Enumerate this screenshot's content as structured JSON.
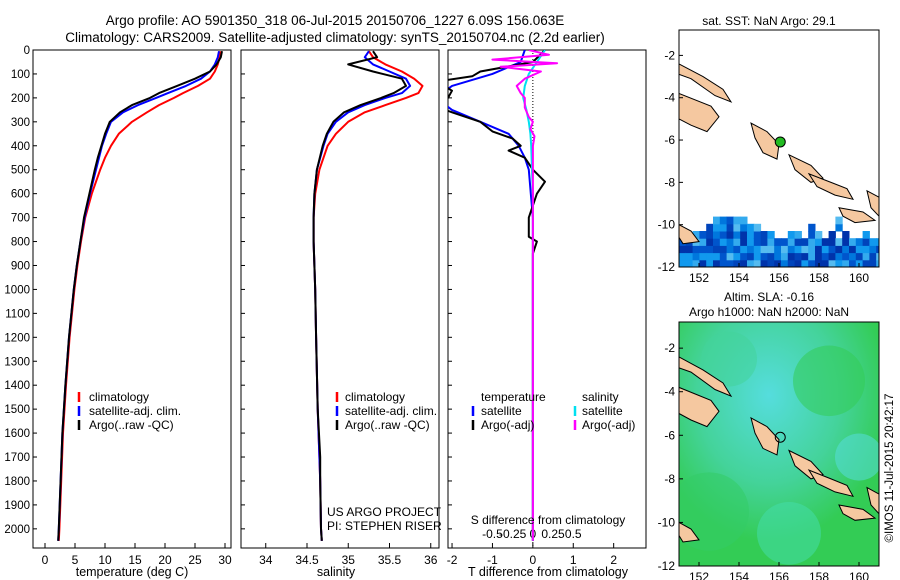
{
  "header": {
    "line1": "Argo profile: AO 5901350_318 06-Jul-2015 20150706_1227 6.09S 156.063E",
    "line2": "Climatology: CARS2009. Satellite-adjusted climatology: synTS_20150704.nc (2.2d earlier)"
  },
  "colors": {
    "climatology": "#ff0000",
    "satellite": "#0000ff",
    "argo": "#000000",
    "sal_satellite": "#00e0f0",
    "sal_argo": "#ff00ff",
    "land": "#f5c8a0",
    "sla_green": "#33cc55",
    "sla_cyan": "#55dddd"
  },
  "chart_data": [
    {
      "type": "line",
      "id": "temperature",
      "xlabel": "temperature (deg C)",
      "ylabel": "",
      "xlim": [
        -2,
        31
      ],
      "ylim": [
        2080,
        0
      ],
      "xticks": [
        0,
        5,
        10,
        15,
        20,
        25,
        30
      ],
      "yticks": [
        0,
        100,
        200,
        300,
        400,
        500,
        600,
        700,
        800,
        900,
        1000,
        1100,
        1200,
        1300,
        1400,
        1500,
        1600,
        1700,
        1800,
        1900,
        2000
      ],
      "legend": [
        "climatology",
        "satellite-adj. clim.",
        "Argo(..raw -QC)"
      ],
      "series": [
        {
          "name": "climatology",
          "depth": [
            5,
            30,
            60,
            90,
            120,
            150,
            180,
            200,
            230,
            260,
            300,
            350,
            400,
            450,
            500,
            600,
            700,
            800,
            900,
            1000,
            1200,
            1400,
            1600,
            1800,
            2000,
            2050
          ],
          "values": [
            29.2,
            29.1,
            28.8,
            28.3,
            27.5,
            25.5,
            23.0,
            21.5,
            19.0,
            17.0,
            14.5,
            12.3,
            11.0,
            10.0,
            9.2,
            7.8,
            6.7,
            6.0,
            5.4,
            4.9,
            4.1,
            3.5,
            3.0,
            2.7,
            2.4,
            2.3
          ]
        },
        {
          "name": "satellite-adj. clim.",
          "depth": [
            5,
            30,
            60,
            90,
            120,
            150,
            180,
            200,
            230,
            260,
            300,
            350,
            400,
            450,
            500,
            600,
            700,
            800,
            900,
            1000,
            1200,
            1400,
            1600,
            1800,
            2000,
            2050
          ],
          "values": [
            29.0,
            28.8,
            28.3,
            27.5,
            26.0,
            23.5,
            20.5,
            18.5,
            15.5,
            13.0,
            11.0,
            10.2,
            9.5,
            9.0,
            8.5,
            7.5,
            6.6,
            5.9,
            5.3,
            4.8,
            4.0,
            3.4,
            2.9,
            2.6,
            2.3,
            2.2
          ]
        },
        {
          "name": "Argo(..raw -QC)",
          "depth": [
            5,
            30,
            60,
            90,
            120,
            150,
            180,
            200,
            230,
            260,
            300,
            350,
            400,
            450,
            500,
            600,
            700,
            800,
            900,
            1000,
            1200,
            1400,
            1600,
            1800,
            2000,
            2050
          ],
          "values": [
            29.5,
            29.3,
            28.6,
            27.5,
            25.0,
            22.0,
            19.0,
            17.5,
            14.5,
            12.5,
            10.8,
            10.0,
            9.4,
            8.8,
            8.3,
            7.4,
            6.5,
            5.9,
            5.3,
            4.8,
            4.0,
            3.4,
            2.9,
            2.6,
            2.3,
            2.2
          ]
        }
      ]
    },
    {
      "type": "line",
      "id": "salinity",
      "xlabel": "salinity",
      "xlim": [
        33.7,
        36.1
      ],
      "ylim": [
        2080,
        0
      ],
      "xticks": [
        34,
        34.5,
        35,
        35.5,
        36
      ],
      "legend": [
        "climatology",
        "satellite-adj. clim.",
        "Argo(..raw -QC)"
      ],
      "series": [
        {
          "name": "climatology",
          "depth": [
            5,
            30,
            60,
            90,
            120,
            150,
            180,
            200,
            230,
            260,
            300,
            350,
            400,
            500,
            600,
            700,
            800,
            900,
            1000,
            1200,
            1500,
            1700,
            1800,
            2000,
            2050
          ],
          "values": [
            35.25,
            35.3,
            35.45,
            35.65,
            35.8,
            35.9,
            35.85,
            35.7,
            35.45,
            35.2,
            35.0,
            34.85,
            34.75,
            34.65,
            34.6,
            34.58,
            34.58,
            34.59,
            34.6,
            34.61,
            34.63,
            34.65,
            34.66,
            34.67,
            34.68
          ]
        },
        {
          "name": "satellite-adj. clim.",
          "depth": [
            5,
            30,
            60,
            90,
            120,
            150,
            180,
            200,
            230,
            260,
            300,
            350,
            400,
            500,
            600,
            700,
            800,
            900,
            1000,
            1200,
            1500,
            1700,
            1800,
            2000,
            2050
          ],
          "values": [
            35.25,
            35.2,
            35.3,
            35.5,
            35.7,
            35.75,
            35.65,
            35.45,
            35.2,
            35.0,
            34.85,
            34.75,
            34.7,
            34.62,
            34.59,
            34.58,
            34.58,
            34.59,
            34.6,
            34.61,
            34.63,
            34.65,
            34.66,
            34.67,
            34.68
          ]
        },
        {
          "name": "Argo(..raw -QC)",
          "depth": [
            5,
            30,
            60,
            90,
            120,
            150,
            180,
            200,
            230,
            260,
            300,
            350,
            400,
            500,
            600,
            700,
            800,
            900,
            1000,
            1200,
            1500,
            1700,
            1800,
            2000,
            2050
          ],
          "values": [
            35.3,
            35.35,
            35.0,
            35.3,
            35.65,
            35.7,
            35.55,
            35.4,
            35.15,
            34.95,
            34.82,
            34.74,
            34.69,
            34.62,
            34.59,
            34.58,
            34.58,
            34.59,
            34.6,
            34.61,
            34.63,
            34.66,
            34.66,
            34.67,
            34.68
          ]
        }
      ],
      "annotation": [
        "US ARGO PROJECT",
        "PI: STEPHEN RISER"
      ]
    },
    {
      "type": "line",
      "id": "difference",
      "xlabel": "T difference from climatology",
      "xlabel_top": "S difference from climatology",
      "xlim": [
        -2.1,
        2.8
      ],
      "ylim": [
        2080,
        0
      ],
      "xticks": [
        -2,
        -1,
        0,
        1,
        2
      ],
      "xticks_top": [
        -0.5,
        -0.25,
        0,
        0.25,
        0.5
      ],
      "legend_titles": [
        "temperature",
        "salinity"
      ],
      "legend": [
        "satellite",
        "Argo(-adj)",
        "satellite",
        "Argo(-adj)"
      ],
      "series": [
        {
          "name": "satellite",
          "group": "temperature",
          "depth": [
            0,
            50,
            100,
            150,
            200,
            250,
            300,
            350,
            400,
            450,
            500,
            600,
            700,
            800,
            1000,
            1200,
            1500,
            1800,
            2050
          ],
          "values": [
            -0.2,
            -0.3,
            -1.0,
            -2.0,
            -2.4,
            -2.0,
            -1.3,
            -0.6,
            -0.35,
            -0.2,
            -0.1,
            -0.05,
            0.0,
            0.0,
            0.0,
            0.0,
            0.0,
            0.0,
            0.0
          ]
        },
        {
          "name": "Argo(-adj)",
          "group": "temperature",
          "depth": [
            0,
            50,
            90,
            110,
            130,
            150,
            170,
            200,
            215,
            230,
            260,
            300,
            340,
            370,
            400,
            420,
            450,
            500,
            550,
            600,
            700,
            780,
            800,
            850,
            900,
            1000,
            1500,
            2050
          ],
          "values": [
            0.3,
            0.0,
            -1.3,
            -1.5,
            -2.3,
            -2.2,
            -2.0,
            -2.1,
            -2.2,
            -2.5,
            -2.0,
            -1.3,
            -1.0,
            -0.5,
            -0.3,
            -0.6,
            -0.2,
            0.0,
            0.3,
            0.1,
            -0.1,
            -0.1,
            0.1,
            0.0,
            0.0,
            0.0,
            0.0,
            0.0
          ]
        },
        {
          "name": "satellite",
          "group": "salinity",
          "depth": [
            0,
            50,
            100,
            150,
            200,
            250,
            300,
            350,
            400,
            500,
            600,
            800,
            1000,
            1500,
            2050
          ],
          "values": [
            0.15,
            0.05,
            -0.05,
            -0.1,
            -0.12,
            -0.08,
            -0.05,
            -0.03,
            -0.02,
            -0.01,
            0.0,
            0.0,
            0.0,
            0.0,
            0.0
          ]
        },
        {
          "name": "Argo(-adj)",
          "group": "salinity",
          "depth": [
            0,
            20,
            40,
            55,
            70,
            90,
            120,
            150,
            180,
            200,
            240,
            280,
            300,
            330,
            360,
            400,
            500,
            1000,
            2050
          ],
          "values": [
            -0.05,
            0.2,
            -0.5,
            0.3,
            -0.4,
            0.1,
            -0.1,
            -0.2,
            -0.15,
            -0.1,
            -0.1,
            -0.05,
            0.0,
            -0.03,
            0.02,
            0.0,
            0.0,
            0.0,
            0.0
          ]
        }
      ]
    },
    {
      "type": "heatmap",
      "id": "sst-map",
      "title": "sat. SST: NaN Argo: 29.1",
      "xlim": [
        151,
        161
      ],
      "ylim": [
        -12,
        -0.8
      ],
      "xticks": [
        152,
        154,
        156,
        158,
        160
      ],
      "yticks": [
        -2,
        -4,
        -6,
        -8,
        -10,
        -12
      ],
      "marker": {
        "lon": 156.063,
        "lat": -6.09
      }
    },
    {
      "type": "heatmap",
      "id": "sla-map",
      "title_line1": "Altim. SLA: -0.16",
      "title_line2": "Argo h1000: NaN h2000: NaN",
      "xlim": [
        151,
        161
      ],
      "ylim": [
        -12,
        -0.8
      ],
      "xticks": [
        152,
        154,
        156,
        158,
        160
      ],
      "yticks": [
        -2,
        -4,
        -6,
        -8,
        -10,
        -12
      ],
      "marker": {
        "lon": 156.063,
        "lat": -6.09
      }
    }
  ],
  "credit": "©IMOS 11-Jul-2015 20:42:17"
}
